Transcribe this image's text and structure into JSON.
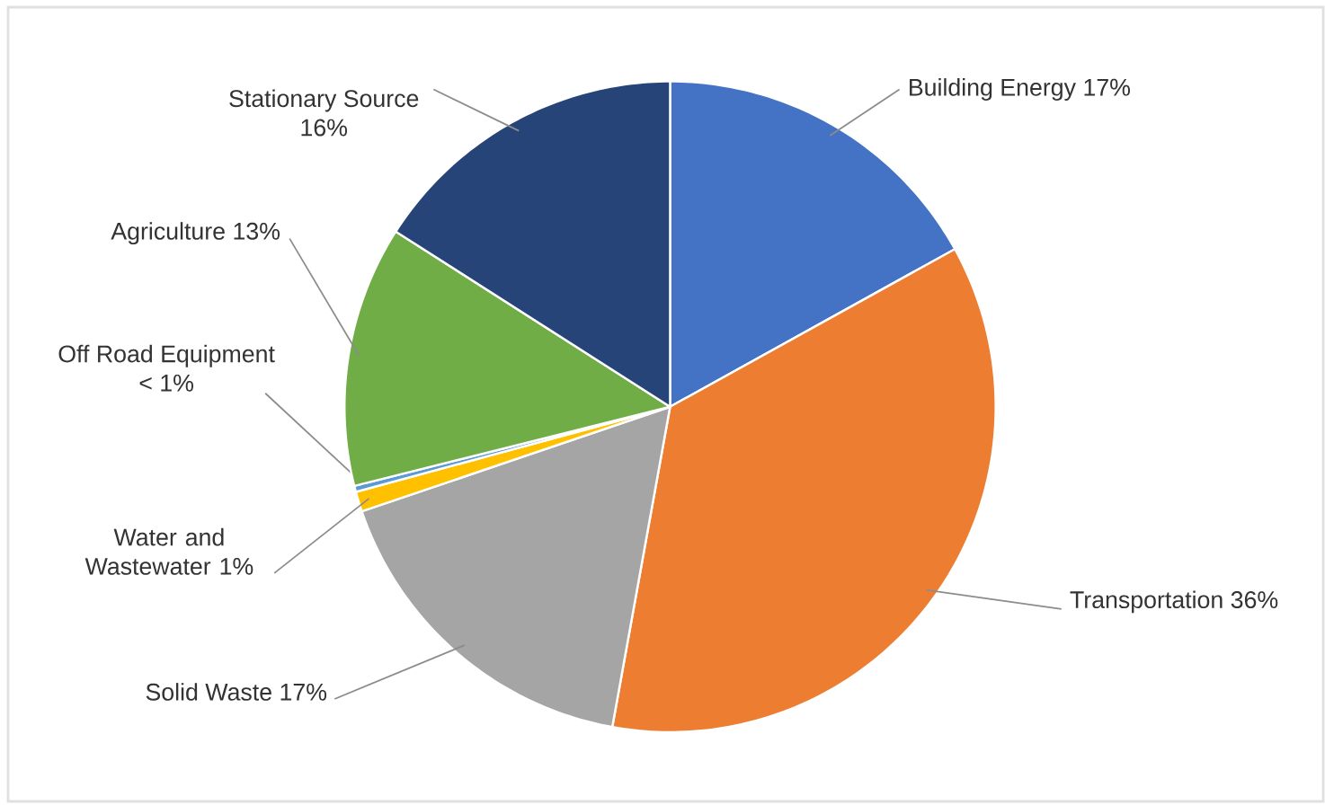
{
  "chart_data": {
    "type": "pie",
    "categories": [
      "Building Energy",
      "Transportation",
      "Solid Waste",
      "Water and Wastewater",
      "Off Road Equipment",
      "Agriculture",
      "Stationary Source"
    ],
    "values": [
      17,
      36,
      17,
      1,
      0.3,
      13,
      16
    ],
    "value_labels": [
      "17%",
      "36%",
      "17%",
      "1%",
      "< 1%",
      "13%",
      "16%"
    ],
    "colors": [
      "#4472c4",
      "#ed7d31",
      "#a5a5a5",
      "#ffc000",
      "#5b9bd5",
      "#70ad47",
      "#264478"
    ]
  }
}
